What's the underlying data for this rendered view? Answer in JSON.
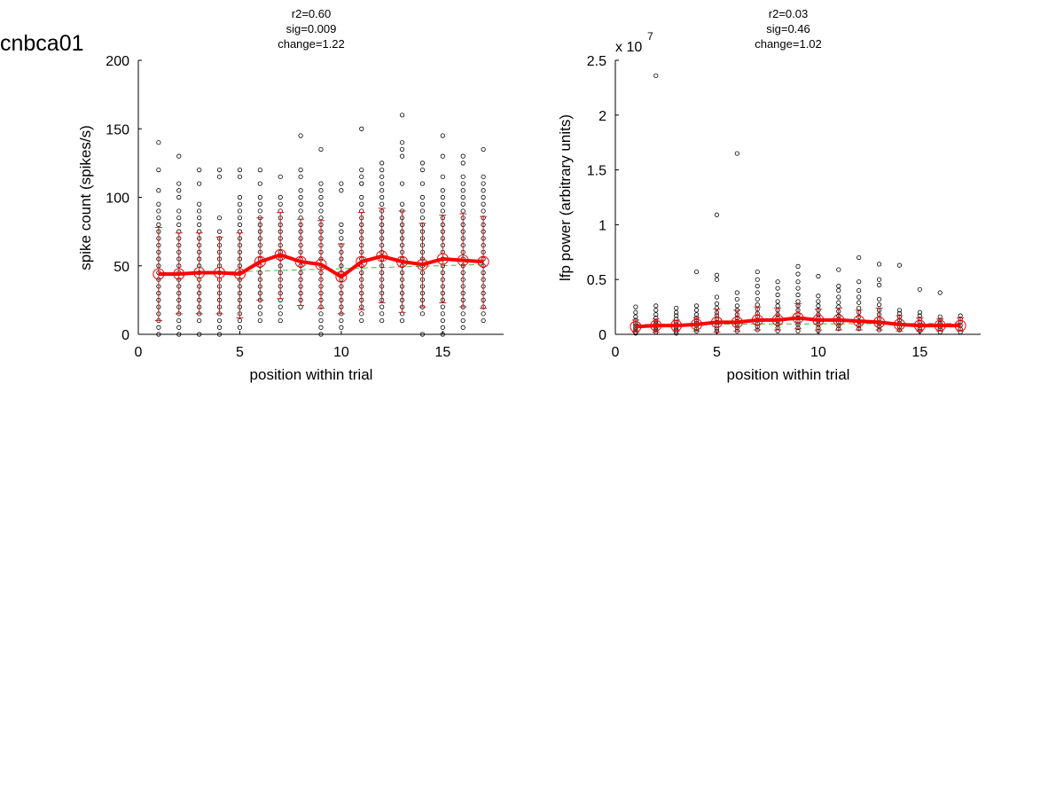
{
  "figure": {
    "title": "cnbca01"
  },
  "colors": {
    "mean_line": "#ff0000",
    "error_bar": "#cc2222",
    "point": "#000000",
    "fit_line": "#44bb44"
  },
  "chart_data": [
    {
      "type": "scatter",
      "stats": [
        "r2=0.60",
        "sig=0.009",
        "change=1.22"
      ],
      "xlabel": "position within trial",
      "ylabel": "spike count (spikes/s)",
      "xlim": [
        0,
        18
      ],
      "ylim": [
        0,
        200
      ],
      "xticks": [
        0,
        5,
        10,
        15
      ],
      "yticks": [
        0,
        50,
        100,
        150,
        200
      ],
      "x": [
        1,
        2,
        3,
        4,
        5,
        6,
        7,
        8,
        9,
        10,
        11,
        12,
        13,
        14,
        15,
        16,
        17
      ],
      "series": [
        {
          "role": "mean",
          "values": [
            44,
            44,
            45,
            45,
            44,
            53,
            58,
            53,
            51,
            42,
            53,
            57,
            53,
            51,
            55,
            54,
            53
          ]
        },
        {
          "role": "error_low",
          "values": [
            10,
            15,
            15,
            15,
            12,
            25,
            26,
            21,
            19,
            15,
            18,
            23,
            16,
            20,
            23,
            20,
            19
          ]
        },
        {
          "role": "error_high",
          "values": [
            78,
            74,
            74,
            71,
            74,
            85,
            89,
            84,
            83,
            66,
            89,
            92,
            90,
            81,
            87,
            88,
            86
          ]
        },
        {
          "role": "linear_fit",
          "values": [
            44,
            51
          ]
        }
      ],
      "points": [
        [
          140,
          120,
          105,
          95,
          90,
          85,
          80,
          75,
          70,
          65,
          60,
          55,
          50,
          45,
          40,
          35,
          30,
          25,
          20,
          15,
          10,
          5,
          0
        ],
        [
          130,
          110,
          105,
          100,
          90,
          85,
          80,
          75,
          70,
          65,
          60,
          55,
          50,
          45,
          40,
          35,
          30,
          25,
          20,
          15,
          10,
          5,
          0
        ],
        [
          120,
          110,
          95,
          90,
          85,
          80,
          75,
          70,
          65,
          60,
          55,
          50,
          45,
          40,
          35,
          30,
          25,
          20,
          15,
          10,
          0
        ],
        [
          120,
          115,
          85,
          75,
          70,
          65,
          60,
          55,
          50,
          45,
          40,
          35,
          30,
          25,
          20,
          15,
          10,
          5,
          0
        ],
        [
          120,
          115,
          100,
          95,
          90,
          85,
          80,
          75,
          70,
          65,
          60,
          55,
          50,
          45,
          40,
          35,
          30,
          25,
          20,
          15,
          10,
          5
        ],
        [
          120,
          110,
          100,
          95,
          90,
          85,
          80,
          75,
          70,
          65,
          60,
          55,
          50,
          45,
          40,
          35,
          30,
          25,
          20,
          15,
          10
        ],
        [
          115,
          100,
          95,
          90,
          85,
          80,
          75,
          70,
          65,
          60,
          55,
          50,
          45,
          40,
          35,
          30,
          25,
          20,
          15,
          10
        ],
        [
          145,
          120,
          115,
          105,
          100,
          95,
          90,
          85,
          80,
          75,
          70,
          65,
          60,
          55,
          50,
          45,
          40,
          35,
          30,
          25,
          20
        ],
        [
          135,
          110,
          105,
          100,
          95,
          90,
          85,
          80,
          75,
          70,
          65,
          60,
          55,
          50,
          45,
          40,
          35,
          30,
          25,
          20,
          15,
          10,
          5,
          0
        ],
        [
          110,
          105,
          80,
          75,
          70,
          65,
          60,
          55,
          50,
          45,
          40,
          35,
          30,
          25,
          20,
          15,
          10,
          5
        ],
        [
          150,
          110,
          120,
          115,
          110,
          100,
          95,
          90,
          85,
          80,
          75,
          70,
          65,
          60,
          55,
          50,
          45,
          40,
          35,
          30,
          25,
          20,
          15,
          10
        ],
        [
          125,
          120,
          115,
          110,
          105,
          100,
          95,
          90,
          85,
          80,
          75,
          70,
          65,
          60,
          55,
          50,
          45,
          40,
          35,
          30,
          25,
          20,
          15,
          10
        ],
        [
          160,
          140,
          135,
          130,
          110,
          95,
          90,
          85,
          80,
          75,
          70,
          65,
          60,
          55,
          50,
          45,
          40,
          35,
          30,
          25,
          20,
          15,
          10
        ],
        [
          125,
          120,
          110,
          100,
          95,
          90,
          85,
          80,
          75,
          70,
          65,
          60,
          55,
          50,
          45,
          40,
          35,
          30,
          25,
          20,
          15,
          0
        ],
        [
          145,
          130,
          115,
          105,
          100,
          95,
          90,
          85,
          80,
          75,
          70,
          65,
          60,
          55,
          50,
          45,
          40,
          35,
          30,
          25,
          20,
          15,
          10,
          5,
          0
        ],
        [
          130,
          125,
          115,
          110,
          105,
          100,
          95,
          90,
          85,
          80,
          75,
          70,
          65,
          60,
          55,
          50,
          45,
          40,
          35,
          30,
          25,
          20,
          15,
          10,
          5
        ],
        [
          135,
          115,
          110,
          105,
          100,
          95,
          90,
          85,
          80,
          75,
          70,
          65,
          60,
          55,
          50,
          45,
          40,
          35,
          30,
          25,
          20,
          15,
          10
        ]
      ]
    },
    {
      "type": "scatter",
      "stats": [
        "r2=0.03",
        "sig=0.46",
        "change=1.02"
      ],
      "xlabel": "position within trial",
      "ylabel": "lfp power (arbitrary units)",
      "yscale_label": "x 10",
      "yscale_exponent": "7",
      "xlim": [
        0,
        18
      ],
      "ylim": [
        0,
        2.5
      ],
      "xticks": [
        0,
        5,
        10,
        15
      ],
      "yticks": [
        0,
        0.5,
        1,
        1.5,
        2,
        2.5
      ],
      "ytick_labels": [
        "0",
        "0.5",
        "1",
        "1.5",
        "2",
        "2.5"
      ],
      "x": [
        1,
        2,
        3,
        4,
        5,
        6,
        7,
        8,
        9,
        10,
        11,
        12,
        13,
        14,
        15,
        16,
        17
      ],
      "series": [
        {
          "role": "mean",
          "values": [
            0.07,
            0.08,
            0.08,
            0.09,
            0.11,
            0.11,
            0.13,
            0.13,
            0.15,
            0.13,
            0.13,
            0.12,
            0.11,
            0.09,
            0.08,
            0.08,
            0.08
          ]
        },
        {
          "role": "error_low",
          "values": [
            0.02,
            0.02,
            0.03,
            0.03,
            0.02,
            0.03,
            0.04,
            0.04,
            0.05,
            0.04,
            0.04,
            0.04,
            0.04,
            0.03,
            0.03,
            0.03,
            0.03
          ]
        },
        {
          "role": "error_high",
          "values": [
            0.13,
            0.14,
            0.13,
            0.15,
            0.23,
            0.22,
            0.25,
            0.24,
            0.28,
            0.23,
            0.24,
            0.22,
            0.24,
            0.17,
            0.15,
            0.14,
            0.15
          ]
        },
        {
          "role": "linear_fit",
          "values": [
            0.09,
            0.1
          ]
        }
      ],
      "points": [
        [
          0.25,
          0.2,
          0.16,
          0.13,
          0.1,
          0.08,
          0.06,
          0.04,
          0.02,
          0.01
        ],
        [
          2.36,
          0.26,
          0.22,
          0.18,
          0.15,
          0.12,
          0.1,
          0.08,
          0.06,
          0.04,
          0.02
        ],
        [
          0.24,
          0.2,
          0.17,
          0.14,
          0.11,
          0.09,
          0.07,
          0.05,
          0.03,
          0.01
        ],
        [
          0.57,
          0.26,
          0.22,
          0.18,
          0.15,
          0.12,
          0.1,
          0.08,
          0.05,
          0.03
        ],
        [
          1.09,
          0.54,
          0.5,
          0.34,
          0.28,
          0.24,
          0.2,
          0.17,
          0.14,
          0.11,
          0.08,
          0.05,
          0.03
        ],
        [
          1.65,
          0.38,
          0.32,
          0.26,
          0.22,
          0.18,
          0.15,
          0.12,
          0.09,
          0.06,
          0.03
        ],
        [
          0.57,
          0.5,
          0.44,
          0.38,
          0.32,
          0.27,
          0.23,
          0.19,
          0.16,
          0.13,
          0.1,
          0.07,
          0.04
        ],
        [
          0.48,
          0.42,
          0.36,
          0.3,
          0.26,
          0.22,
          0.18,
          0.15,
          0.12,
          0.09,
          0.06,
          0.03
        ],
        [
          0.62,
          0.55,
          0.48,
          0.42,
          0.36,
          0.3,
          0.26,
          0.22,
          0.18,
          0.15,
          0.12,
          0.09,
          0.06,
          0.03
        ],
        [
          0.53,
          0.35,
          0.3,
          0.26,
          0.22,
          0.18,
          0.15,
          0.12,
          0.09,
          0.06,
          0.03
        ],
        [
          0.59,
          0.44,
          0.4,
          0.34,
          0.29,
          0.25,
          0.21,
          0.17,
          0.14,
          0.11,
          0.08,
          0.05
        ],
        [
          0.7,
          0.48,
          0.4,
          0.34,
          0.29,
          0.24,
          0.2,
          0.16,
          0.12,
          0.08,
          0.05
        ],
        [
          0.64,
          0.5,
          0.45,
          0.32,
          0.27,
          0.22,
          0.18,
          0.14,
          0.1,
          0.07,
          0.04
        ],
        [
          0.63,
          0.22,
          0.19,
          0.16,
          0.13,
          0.1,
          0.07,
          0.04
        ],
        [
          0.41,
          0.2,
          0.17,
          0.14,
          0.11,
          0.08,
          0.05,
          0.03
        ],
        [
          0.38,
          0.16,
          0.13,
          0.1,
          0.07,
          0.05,
          0.02
        ],
        [
          0.17,
          0.14,
          0.11,
          0.08,
          0.05,
          0.02
        ]
      ]
    }
  ]
}
